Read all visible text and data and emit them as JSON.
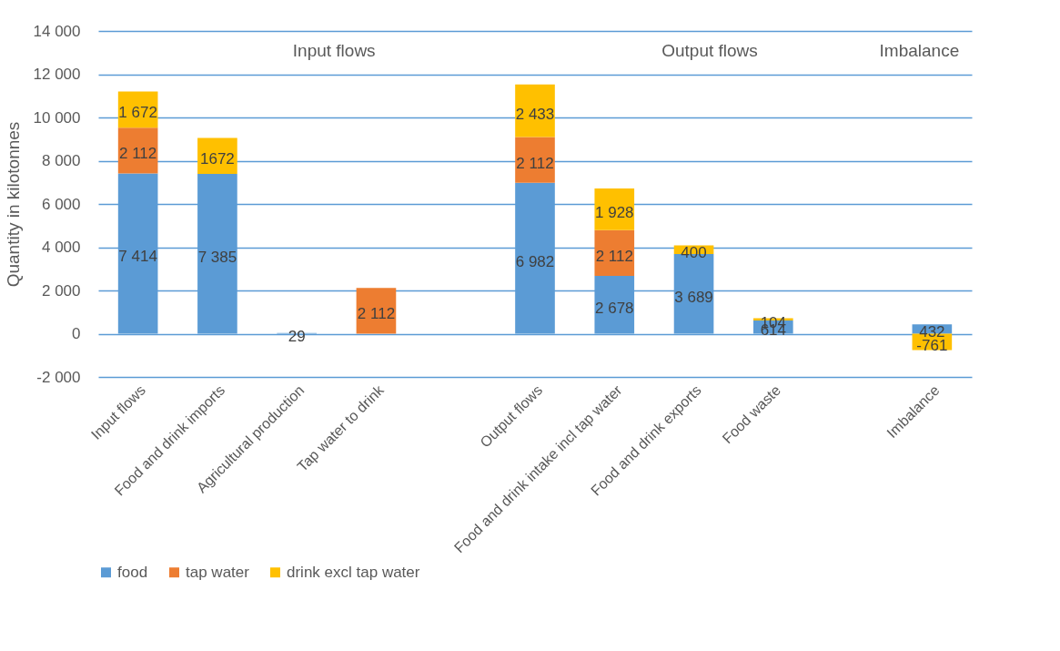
{
  "chart_data": {
    "type": "bar",
    "stacked": true,
    "ylabel": "Quantity in kilotonnes",
    "categories": [
      "Input flows",
      "Food and drink imports",
      "Agricultural production",
      "Tap water to drink",
      null,
      "Output flows",
      "Food and drink intake incl tap water",
      "Food and drink exports",
      "Food waste",
      null,
      "Imbalance"
    ],
    "series": [
      {
        "name": "food",
        "color": "#5b9bd5",
        "values": [
          7414,
          7385,
          29,
          null,
          null,
          6982,
          2678,
          3689,
          614,
          null,
          432
        ],
        "value_labels": [
          "7 414",
          "7 385",
          "29",
          null,
          null,
          "6 982",
          "2 678",
          "3 689",
          "614",
          null,
          "432"
        ]
      },
      {
        "name": "tap water",
        "color": "#ed7d31",
        "values": [
          2112,
          null,
          null,
          2112,
          null,
          2112,
          2112,
          null,
          null,
          null,
          null
        ],
        "value_labels": [
          "2 112",
          null,
          null,
          "2 112",
          null,
          "2 112",
          "2 112",
          null,
          null,
          null,
          null
        ]
      },
      {
        "name": "drink excl tap water",
        "color": "#ffc000",
        "values": [
          1672,
          1672,
          null,
          null,
          null,
          2433,
          1928,
          400,
          104,
          null,
          -761
        ],
        "value_labels": [
          "1 672",
          "1672",
          null,
          null,
          null,
          "2 433",
          "1 928",
          "400",
          "104",
          null,
          "-761"
        ]
      }
    ],
    "ylim": [
      -2000,
      14000
    ],
    "yticks": [
      {
        "value": -2000,
        "label": "-2 000"
      },
      {
        "value": 0,
        "label": "0"
      },
      {
        "value": 2000,
        "label": "2 000"
      },
      {
        "value": 4000,
        "label": "4 000"
      },
      {
        "value": 6000,
        "label": "6 000"
      },
      {
        "value": 8000,
        "label": "8 000"
      },
      {
        "value": 10000,
        "label": "10 000"
      },
      {
        "value": 12000,
        "label": "12 000"
      },
      {
        "value": 14000,
        "label": "14 000"
      }
    ],
    "grid": "y",
    "legend": "bottom",
    "annotations": [
      "Input flows",
      "Output flows",
      "Imbalance"
    ]
  }
}
